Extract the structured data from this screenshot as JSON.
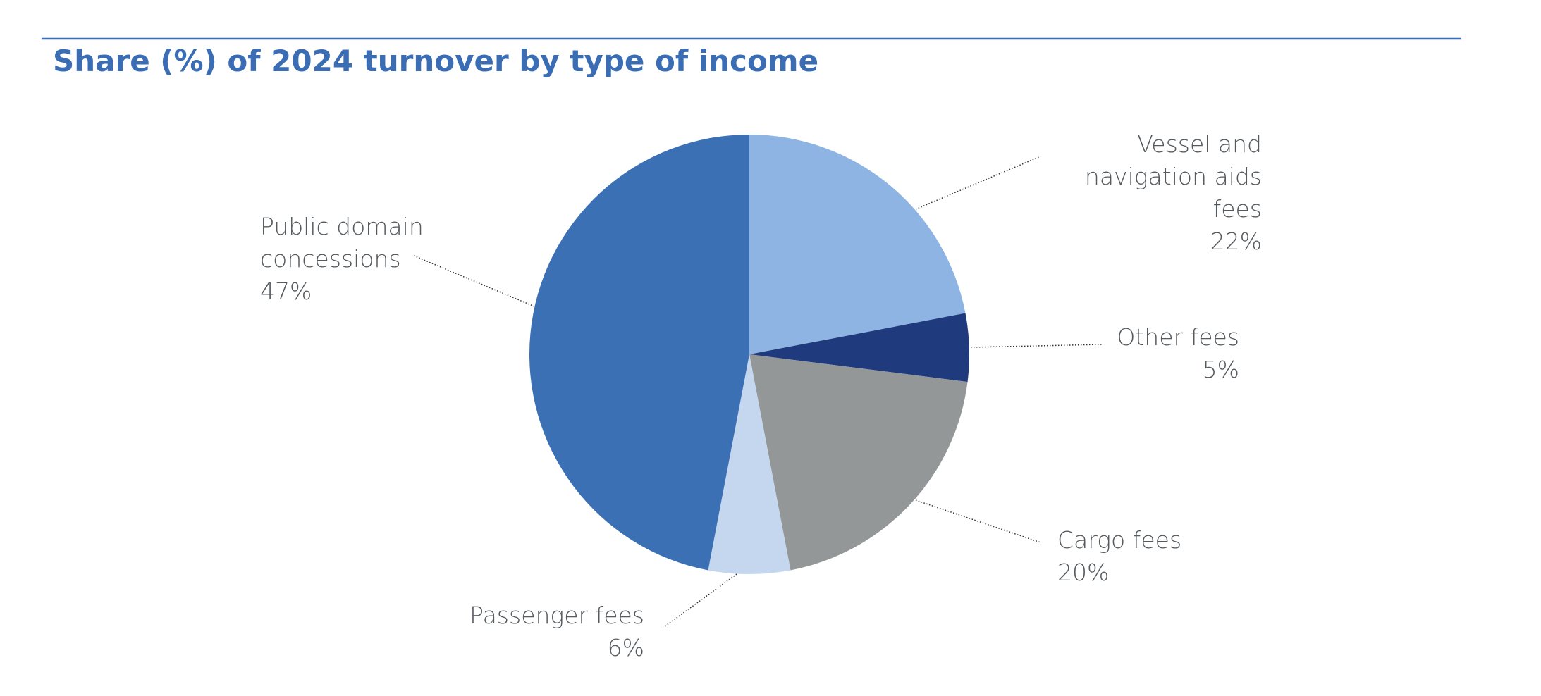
{
  "chart_data": {
    "type": "pie",
    "title": "Share (%) of 2024 turnover by type of income",
    "categories": [
      "Vessel and navigation aids fees",
      "Other fees",
      "Cargo fees",
      "Passenger fees",
      "Public domain concessions"
    ],
    "values": [
      22,
      5,
      20,
      6,
      47
    ],
    "value_labels": [
      "22%",
      "5%",
      "20%",
      "6%",
      "47%"
    ],
    "colors": [
      "#8db4e2",
      "#1f3a7d",
      "#939798",
      "#c5d7ef",
      "#3b70b4"
    ]
  }
}
